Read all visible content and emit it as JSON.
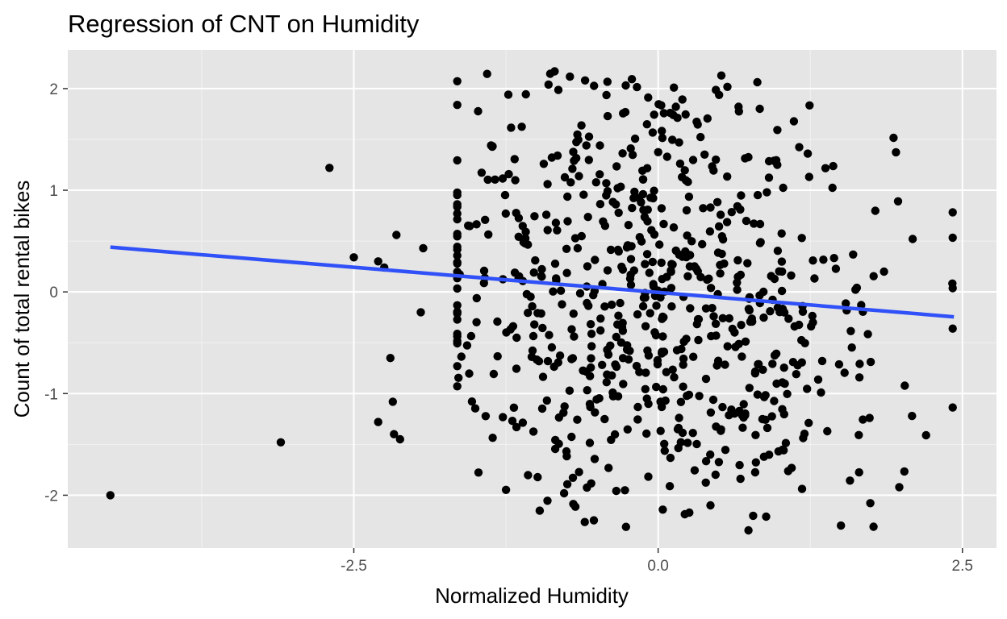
{
  "chart_data": {
    "type": "scatter",
    "title": "Regression of CNT on Humidity",
    "xlabel": "Normalized Humidity",
    "ylabel": "Count of total rental bikes",
    "xlim": [
      -4.85,
      2.78
    ],
    "ylim": [
      -2.52,
      2.38
    ],
    "x_ticks": [
      -2.5,
      0.0,
      2.5
    ],
    "x_tick_labels": [
      "-2.5",
      "0.0",
      "2.5"
    ],
    "x_minor_gridlines": [
      -3.75,
      -1.25,
      1.25
    ],
    "y_ticks": [
      -2,
      -1,
      0,
      1,
      2
    ],
    "y_tick_labels": [
      "-2",
      "-1",
      "0",
      "1",
      "2"
    ],
    "y_minor_gridlines": [
      -1.5,
      -0.5,
      0.5,
      1.5
    ],
    "grid": true,
    "panel_background": "#e5e5e5",
    "point_color": "#000000",
    "regression_line": {
      "color": "#3050f8",
      "x": [
        -4.5,
        2.43
      ],
      "y": [
        0.44,
        -0.245
      ]
    },
    "points_seed": 20240611,
    "points_count": 731,
    "outliers": [
      {
        "x": -4.5,
        "y": -2.0
      },
      {
        "x": -3.1,
        "y": -1.48
      },
      {
        "x": -2.7,
        "y": 1.22
      },
      {
        "x": -2.5,
        "y": 0.34
      },
      {
        "x": -2.3,
        "y": 0.3
      },
      {
        "x": -2.25,
        "y": 0.24
      },
      {
        "x": -2.3,
        "y": -1.28
      },
      {
        "x": -2.2,
        "y": -0.65
      },
      {
        "x": -2.18,
        "y": -1.08
      },
      {
        "x": -2.17,
        "y": -1.4
      },
      {
        "x": -2.15,
        "y": 0.56
      },
      {
        "x": -2.12,
        "y": -1.45
      },
      {
        "x": -1.93,
        "y": 0.43
      },
      {
        "x": -1.95,
        "y": -0.2
      },
      {
        "x": 1.77,
        "y": -2.31
      },
      {
        "x": 0.43,
        "y": -2.1
      },
      {
        "x": -0.85,
        "y": 2.17
      },
      {
        "x": -0.6,
        "y": 2.08
      },
      {
        "x": 0.13,
        "y": 2.01
      }
    ]
  }
}
